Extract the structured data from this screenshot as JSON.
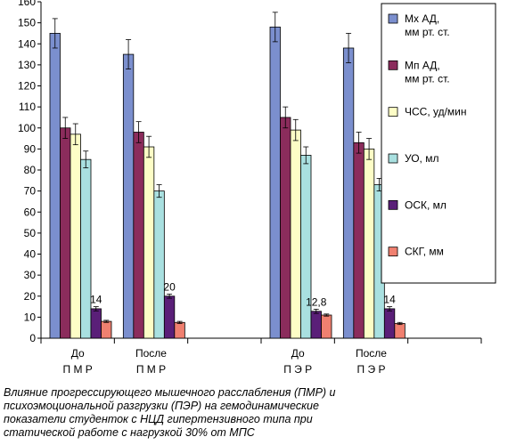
{
  "chart_data": {
    "type": "bar",
    "ylim": [
      0,
      160
    ],
    "yticks": [
      0,
      10,
      20,
      30,
      40,
      50,
      60,
      70,
      80,
      90,
      100,
      110,
      120,
      130,
      140,
      150,
      160
    ],
    "grid": false,
    "legend_position": "right",
    "groups": [
      {
        "label1": "До",
        "label2": "П М Р"
      },
      {
        "label1": "После",
        "label2": "П М Р"
      },
      {
        "label1": "",
        "label2": ""
      },
      {
        "label1": "До",
        "label2": "П Э Р"
      },
      {
        "label1": "После",
        "label2": "П Э Р"
      },
      {
        "label1": "",
        "label2": ""
      }
    ],
    "series": [
      {
        "name": "Мх АД,\nмм рт. ст.",
        "color": "#7b8fce",
        "values": [
          145,
          135,
          null,
          148,
          138,
          null
        ],
        "errors": [
          7,
          7,
          null,
          7,
          7,
          null
        ]
      },
      {
        "name": "Мп АД,\nмм рт. ст.",
        "color": "#8b2c5c",
        "values": [
          100,
          98,
          null,
          105,
          93,
          null
        ],
        "errors": [
          5,
          5,
          null,
          5,
          5,
          null
        ]
      },
      {
        "name": "ЧСС, уд/мин",
        "color": "#fdfdc6",
        "values": [
          97,
          91,
          null,
          99,
          90,
          null
        ],
        "errors": [
          5,
          5,
          null,
          5,
          5,
          null
        ]
      },
      {
        "name": "УО, мл",
        "color": "#a9e0e0",
        "values": [
          85,
          70,
          null,
          87,
          73,
          null
        ],
        "errors": [
          4,
          3,
          null,
          4,
          3,
          null
        ]
      },
      {
        "name": "ОСК, мл",
        "color": "#5a1f78",
        "values": [
          14,
          20,
          null,
          12.8,
          14,
          null
        ],
        "errors": [
          1,
          1,
          null,
          1,
          1,
          null
        ]
      },
      {
        "name": "СКГ, мм",
        "color": "#f08070",
        "values": [
          8,
          7.5,
          null,
          11,
          7,
          null
        ],
        "errors": [
          0.5,
          0.5,
          null,
          0.5,
          0.5,
          null
        ]
      }
    ],
    "data_labels": [
      {
        "group": 0,
        "series": 4,
        "text": "14"
      },
      {
        "group": 1,
        "series": 4,
        "text": "20"
      },
      {
        "group": 3,
        "series": 4,
        "text": "12,8"
      },
      {
        "group": 4,
        "series": 4,
        "text": "14"
      }
    ]
  },
  "caption": {
    "lines": [
      "Влияние прогрессирующего мышечного расслабления (ПМР) и",
      "психоэмоциональной  разгрузки (ПЭР) на   гемодинамические",
      "показатели студенток с НЦД гипертензивного   типа при",
      "статической работе с нагрузкой 30% от МПС"
    ]
  }
}
